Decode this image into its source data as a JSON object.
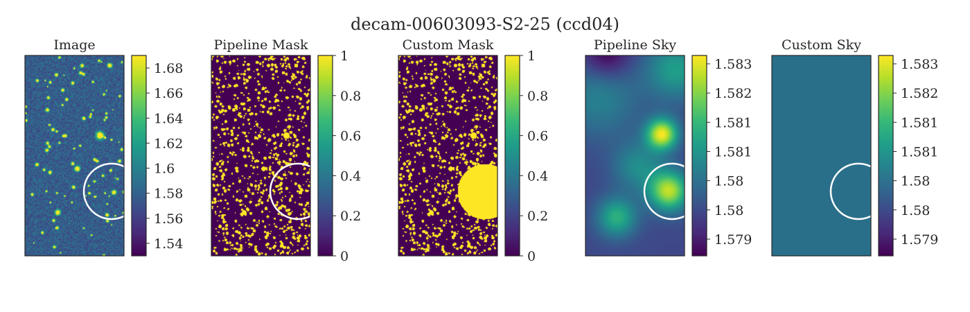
{
  "figure": {
    "title": "decam-00603093-S2-25 (ccd04)"
  },
  "colormap": "viridis",
  "overlay": {
    "circle_color": "#ffffff"
  },
  "chart_data": [
    {
      "type": "heatmap",
      "title": "Image",
      "content": "noise-with-sources",
      "colorbar": {
        "vmin": 1.53,
        "vmax": 1.69,
        "ticks": [
          1.54,
          1.56,
          1.58,
          1.6,
          1.62,
          1.64,
          1.66,
          1.68
        ],
        "tick_labels": [
          "1.54",
          "1.56",
          "1.58",
          "1.6",
          "1.62",
          "1.64",
          "1.66",
          "1.68"
        ]
      },
      "circle": true
    },
    {
      "type": "heatmap",
      "title": "Pipeline Mask",
      "content": "binary-mask",
      "colorbar": {
        "vmin": 0,
        "vmax": 1,
        "ticks": [
          0,
          0.2,
          0.4,
          0.6,
          0.8,
          1
        ],
        "tick_labels": [
          "0",
          "0.2",
          "0.4",
          "0.6",
          "0.8",
          "1"
        ]
      },
      "circle": true
    },
    {
      "type": "heatmap",
      "title": "Custom Mask",
      "content": "binary-mask-with-disk",
      "colorbar": {
        "vmin": 0,
        "vmax": 1,
        "ticks": [
          0,
          0.2,
          0.4,
          0.6,
          0.8,
          1
        ],
        "tick_labels": [
          "0",
          "0.2",
          "0.4",
          "0.6",
          "0.8",
          "1"
        ]
      },
      "circle": false
    },
    {
      "type": "heatmap",
      "title": "Pipeline Sky",
      "content": "smooth-sky",
      "colorbar": {
        "vmin": 1.5786,
        "vmax": 1.5834,
        "ticks": [
          1.579,
          1.5797,
          1.5804,
          1.5811,
          1.5818,
          1.5825,
          1.5832
        ],
        "tick_labels": [
          "1.579",
          "1.58",
          "1.58",
          "1.581",
          "1.581",
          "1.582",
          "1.583"
        ]
      },
      "circle": true
    },
    {
      "type": "heatmap",
      "title": "Custom Sky",
      "content": "constant",
      "constant_color": "#2a6f8a",
      "colorbar": {
        "vmin": 1.5786,
        "vmax": 1.5834,
        "ticks": [
          1.579,
          1.5797,
          1.5804,
          1.5811,
          1.5818,
          1.5825,
          1.5832
        ],
        "tick_labels": [
          "1.579",
          "1.58",
          "1.58",
          "1.581",
          "1.581",
          "1.582",
          "1.583"
        ]
      },
      "circle": true
    }
  ]
}
